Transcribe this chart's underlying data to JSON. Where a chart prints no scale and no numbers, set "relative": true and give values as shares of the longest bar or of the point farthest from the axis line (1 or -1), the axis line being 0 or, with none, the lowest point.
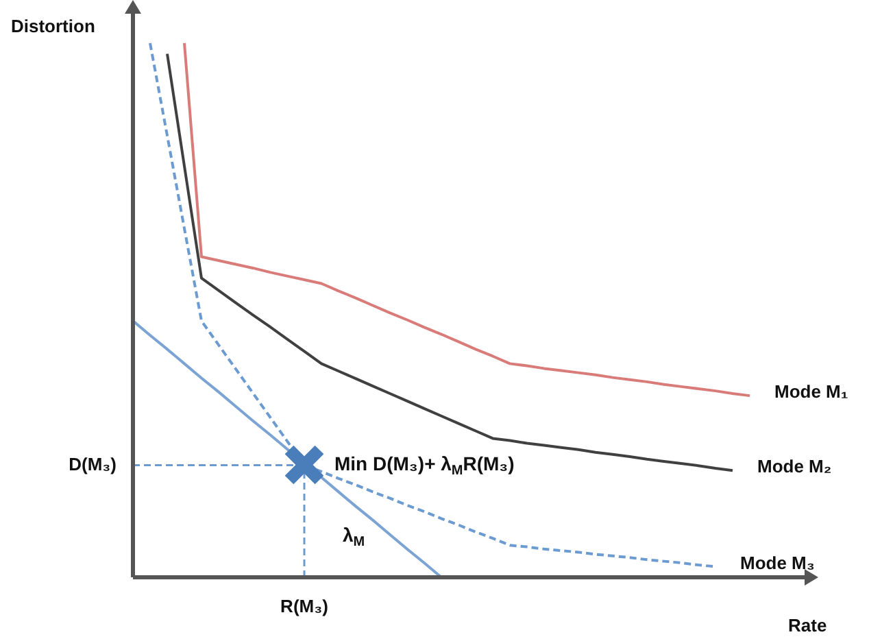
{
  "chart_data": {
    "type": "line",
    "relative": true,
    "xlabel": "Rate",
    "ylabel": "Distortion",
    "tick_labels": false,
    "categories": [
      null,
      null,
      null,
      null,
      null,
      null,
      null,
      null,
      null,
      null,
      null,
      null,
      null,
      null,
      null,
      null,
      null,
      null,
      null,
      null,
      null,
      null,
      null,
      null,
      null,
      null,
      null,
      null,
      null,
      null,
      null,
      null,
      null,
      null,
      null,
      null,
      null
    ],
    "series": [
      {
        "name": "Mode M₁",
        "color": "#d97b78",
        "line_style": "solid",
        "marker": "none",
        "values": [
          null,
          null,
          null,
          1.0,
          0.6,
          0.593,
          0.586,
          0.579,
          0.571,
          0.564,
          0.557,
          0.55,
          0.536,
          0.523,
          0.509,
          0.495,
          0.482,
          0.468,
          0.455,
          0.441,
          0.427,
          0.414,
          0.4,
          0.396,
          0.391,
          0.387,
          0.383,
          0.379,
          0.374,
          0.37,
          0.366,
          0.361,
          0.357,
          0.353,
          0.349,
          0.344,
          0.34
        ]
      },
      {
        "name": "Mode M₂",
        "color": "#404040",
        "line_style": "solid",
        "marker": "none",
        "values": [
          null,
          null,
          0.98,
          0.77,
          0.56,
          0.537,
          0.514,
          0.491,
          0.469,
          0.446,
          0.423,
          0.4,
          0.386,
          0.372,
          0.358,
          0.344,
          0.33,
          0.316,
          0.302,
          0.288,
          0.274,
          0.26,
          0.256,
          0.251,
          0.247,
          0.243,
          0.239,
          0.234,
          0.23,
          0.226,
          0.221,
          0.217,
          0.213,
          0.209,
          0.204,
          0.2,
          null
        ]
      },
      {
        "name": "Mode M₃",
        "color": "#6b9bd1",
        "line_style": "dashed",
        "marker": "none",
        "values": [
          null,
          1.0,
          0.827,
          0.653,
          0.48,
          0.435,
          0.39,
          0.345,
          0.3,
          0.255,
          0.21,
          0.198,
          0.185,
          0.173,
          0.16,
          0.148,
          0.135,
          0.123,
          0.11,
          0.098,
          0.085,
          0.073,
          0.06,
          0.057,
          0.053,
          0.05,
          0.047,
          0.043,
          0.04,
          0.037,
          0.033,
          0.03,
          0.027,
          0.023,
          0.02,
          null,
          null
        ]
      },
      {
        "name": "λ$_{M}$",
        "color": "#7ba3d4",
        "line_style": "solid",
        "marker": "none",
        "values": [
          0.48,
          0.453,
          0.427,
          0.4,
          0.373,
          0.347,
          0.32,
          0.293,
          0.267,
          0.24,
          0.213,
          0.187,
          0.16,
          0.133,
          0.107,
          0.08,
          0.053,
          0.027,
          0,
          null,
          null,
          null,
          null,
          null,
          null,
          null,
          null,
          null,
          null,
          null,
          null,
          null,
          null,
          null,
          null,
          null,
          null
        ]
      }
    ],
    "ref_lines": [
      {
        "axis": "y",
        "value": 0.21,
        "label": "D(M₃)",
        "color": "#6b9bd1",
        "line_style": "dashed"
      }
    ],
    "annotations": [
      "Min D(M₃)+ λ$_{M}$R(M₃)",
      "R(M₃)"
    ]
  }
}
